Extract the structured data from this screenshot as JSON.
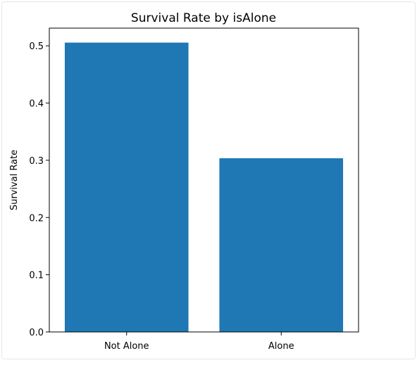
{
  "chart_data": {
    "type": "bar",
    "title": "Survival Rate by isAlone",
    "xlabel": "",
    "ylabel": "Survival Rate",
    "categories": [
      "Not Alone",
      "Alone"
    ],
    "values": [
      0.5056,
      0.3035
    ],
    "ylim": [
      0,
      0.5309
    ],
    "yticks": [
      "0.0",
      "0.1",
      "0.2",
      "0.3",
      "0.4",
      "0.5"
    ],
    "bar_color": "#1f77b4",
    "grid": false
  }
}
